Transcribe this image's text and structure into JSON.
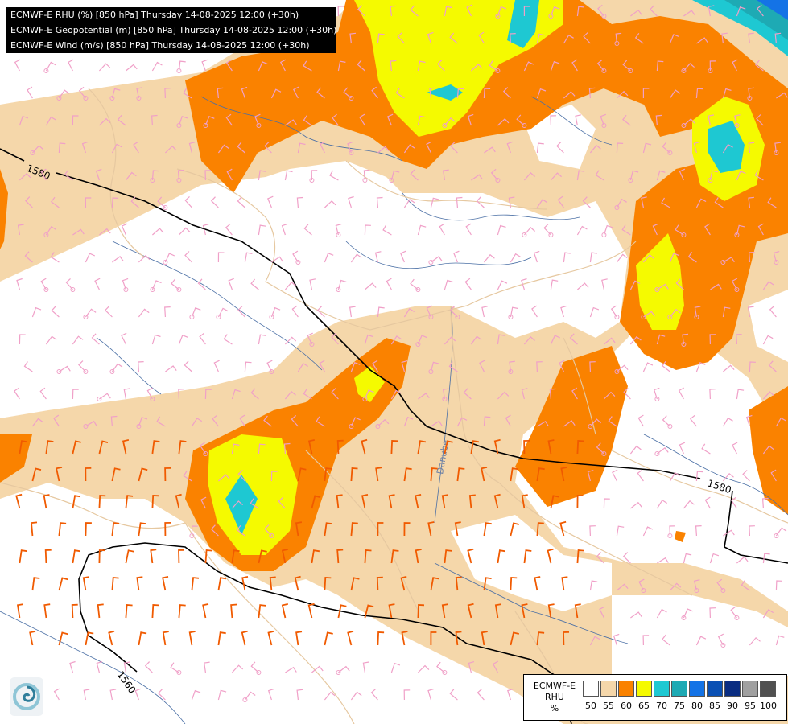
{
  "titles": [
    "ECMWF-E RHU (%) [850 hPa] Thursday 14-08-2025 12:00 (+30h)",
    "ECMWF-E Geopotential (m) [850 hPa] Thursday 14-08-2025 12:00 (+30h)",
    "ECMWF-E Wind (m/s) [850 hPa] Thursday 14-08-2025 12:00 (+30h)"
  ],
  "legend": {
    "model": "ECMWF-E",
    "variable": "RHU",
    "unit": "%",
    "bins": [
      {
        "label": "50",
        "color": "#ffffff"
      },
      {
        "label": "55",
        "color": "#f5d7aa"
      },
      {
        "label": "60",
        "color": "#fa8200"
      },
      {
        "label": "65",
        "color": "#f5fa00"
      },
      {
        "label": "70",
        "color": "#1ec8d2"
      },
      {
        "label": "75",
        "color": "#1eaab4"
      },
      {
        "label": "80",
        "color": "#1473e6"
      },
      {
        "label": "85",
        "color": "#0a50b4"
      },
      {
        "label": "90",
        "color": "#0a2d82"
      },
      {
        "label": "95",
        "color": "#a0a0a0"
      },
      {
        "label": "100",
        "color": "#505050"
      }
    ]
  },
  "contours": [
    {
      "label": "1580"
    },
    {
      "label": "1580"
    },
    {
      "label": "1560"
    }
  ],
  "map_labels": {
    "river": "Danube"
  },
  "colors": {
    "land_bg": "#ffffff",
    "border_lines": "#e6c8a0",
    "rivers": "#4a6fa5",
    "wind_weak": "#f0a0c8",
    "wind_strong": "#f05a00",
    "contour": "#000000"
  },
  "icons": {
    "logo": "ecmwf-swirl-logo"
  }
}
